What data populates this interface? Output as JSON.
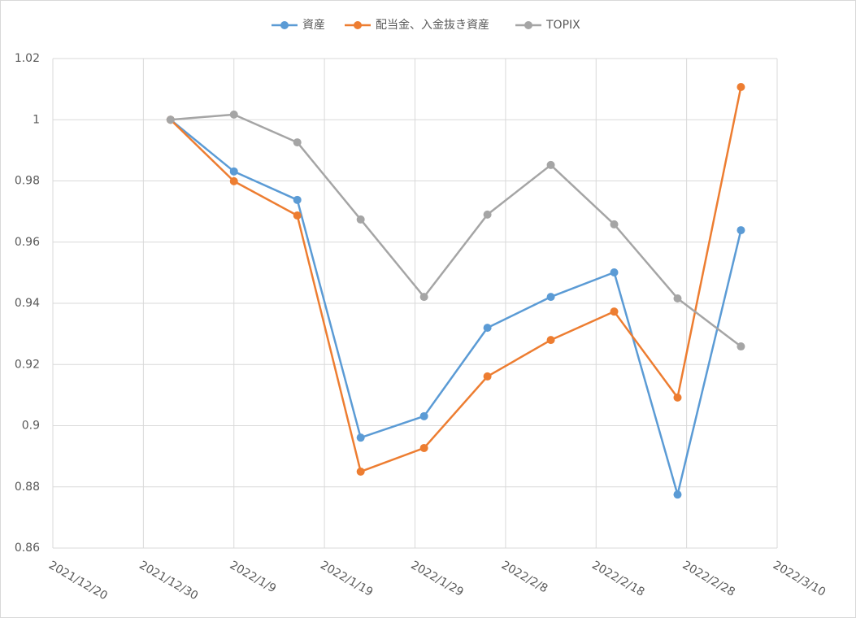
{
  "chart_data": {
    "type": "line",
    "x": [
      "2022/1/2",
      "2022/1/9",
      "2022/1/16",
      "2022/1/23",
      "2022/1/30",
      "2022/2/6",
      "2022/2/13",
      "2022/2/20",
      "2022/2/27",
      "2022/3/6"
    ],
    "series": [
      {
        "name": "資産",
        "color": "#5b9bd5",
        "values": [
          1.0,
          0.9831,
          0.9738,
          0.8961,
          0.9031,
          0.932,
          0.9421,
          0.9501,
          0.8775,
          0.9639
        ]
      },
      {
        "name": "配当金、入金抜き資産",
        "color": "#ed7d31",
        "values": [
          1.0,
          0.9799,
          0.9687,
          0.885,
          0.8927,
          0.9161,
          0.928,
          0.9373,
          0.9092,
          1.0107
        ]
      },
      {
        "name": "TOPIX",
        "color": "#a5a5a5",
        "values": [
          1.0,
          1.0017,
          0.9926,
          0.9674,
          0.9421,
          0.969,
          0.9852,
          0.9658,
          0.9416,
          0.9259
        ]
      }
    ],
    "xlim": [
      "2021/12/20",
      "2022/3/10"
    ],
    "xticks": [
      "2021/12/20",
      "2021/12/30",
      "2022/1/9",
      "2022/1/19",
      "2022/1/29",
      "2022/2/8",
      "2022/2/18",
      "2022/2/28",
      "2022/3/10"
    ],
    "ylim": [
      0.86,
      1.02
    ],
    "yticks": [
      0.86,
      0.88,
      0.9,
      0.92,
      0.94,
      0.96,
      0.98,
      1,
      1.02
    ],
    "grid": true,
    "legend": "top"
  }
}
